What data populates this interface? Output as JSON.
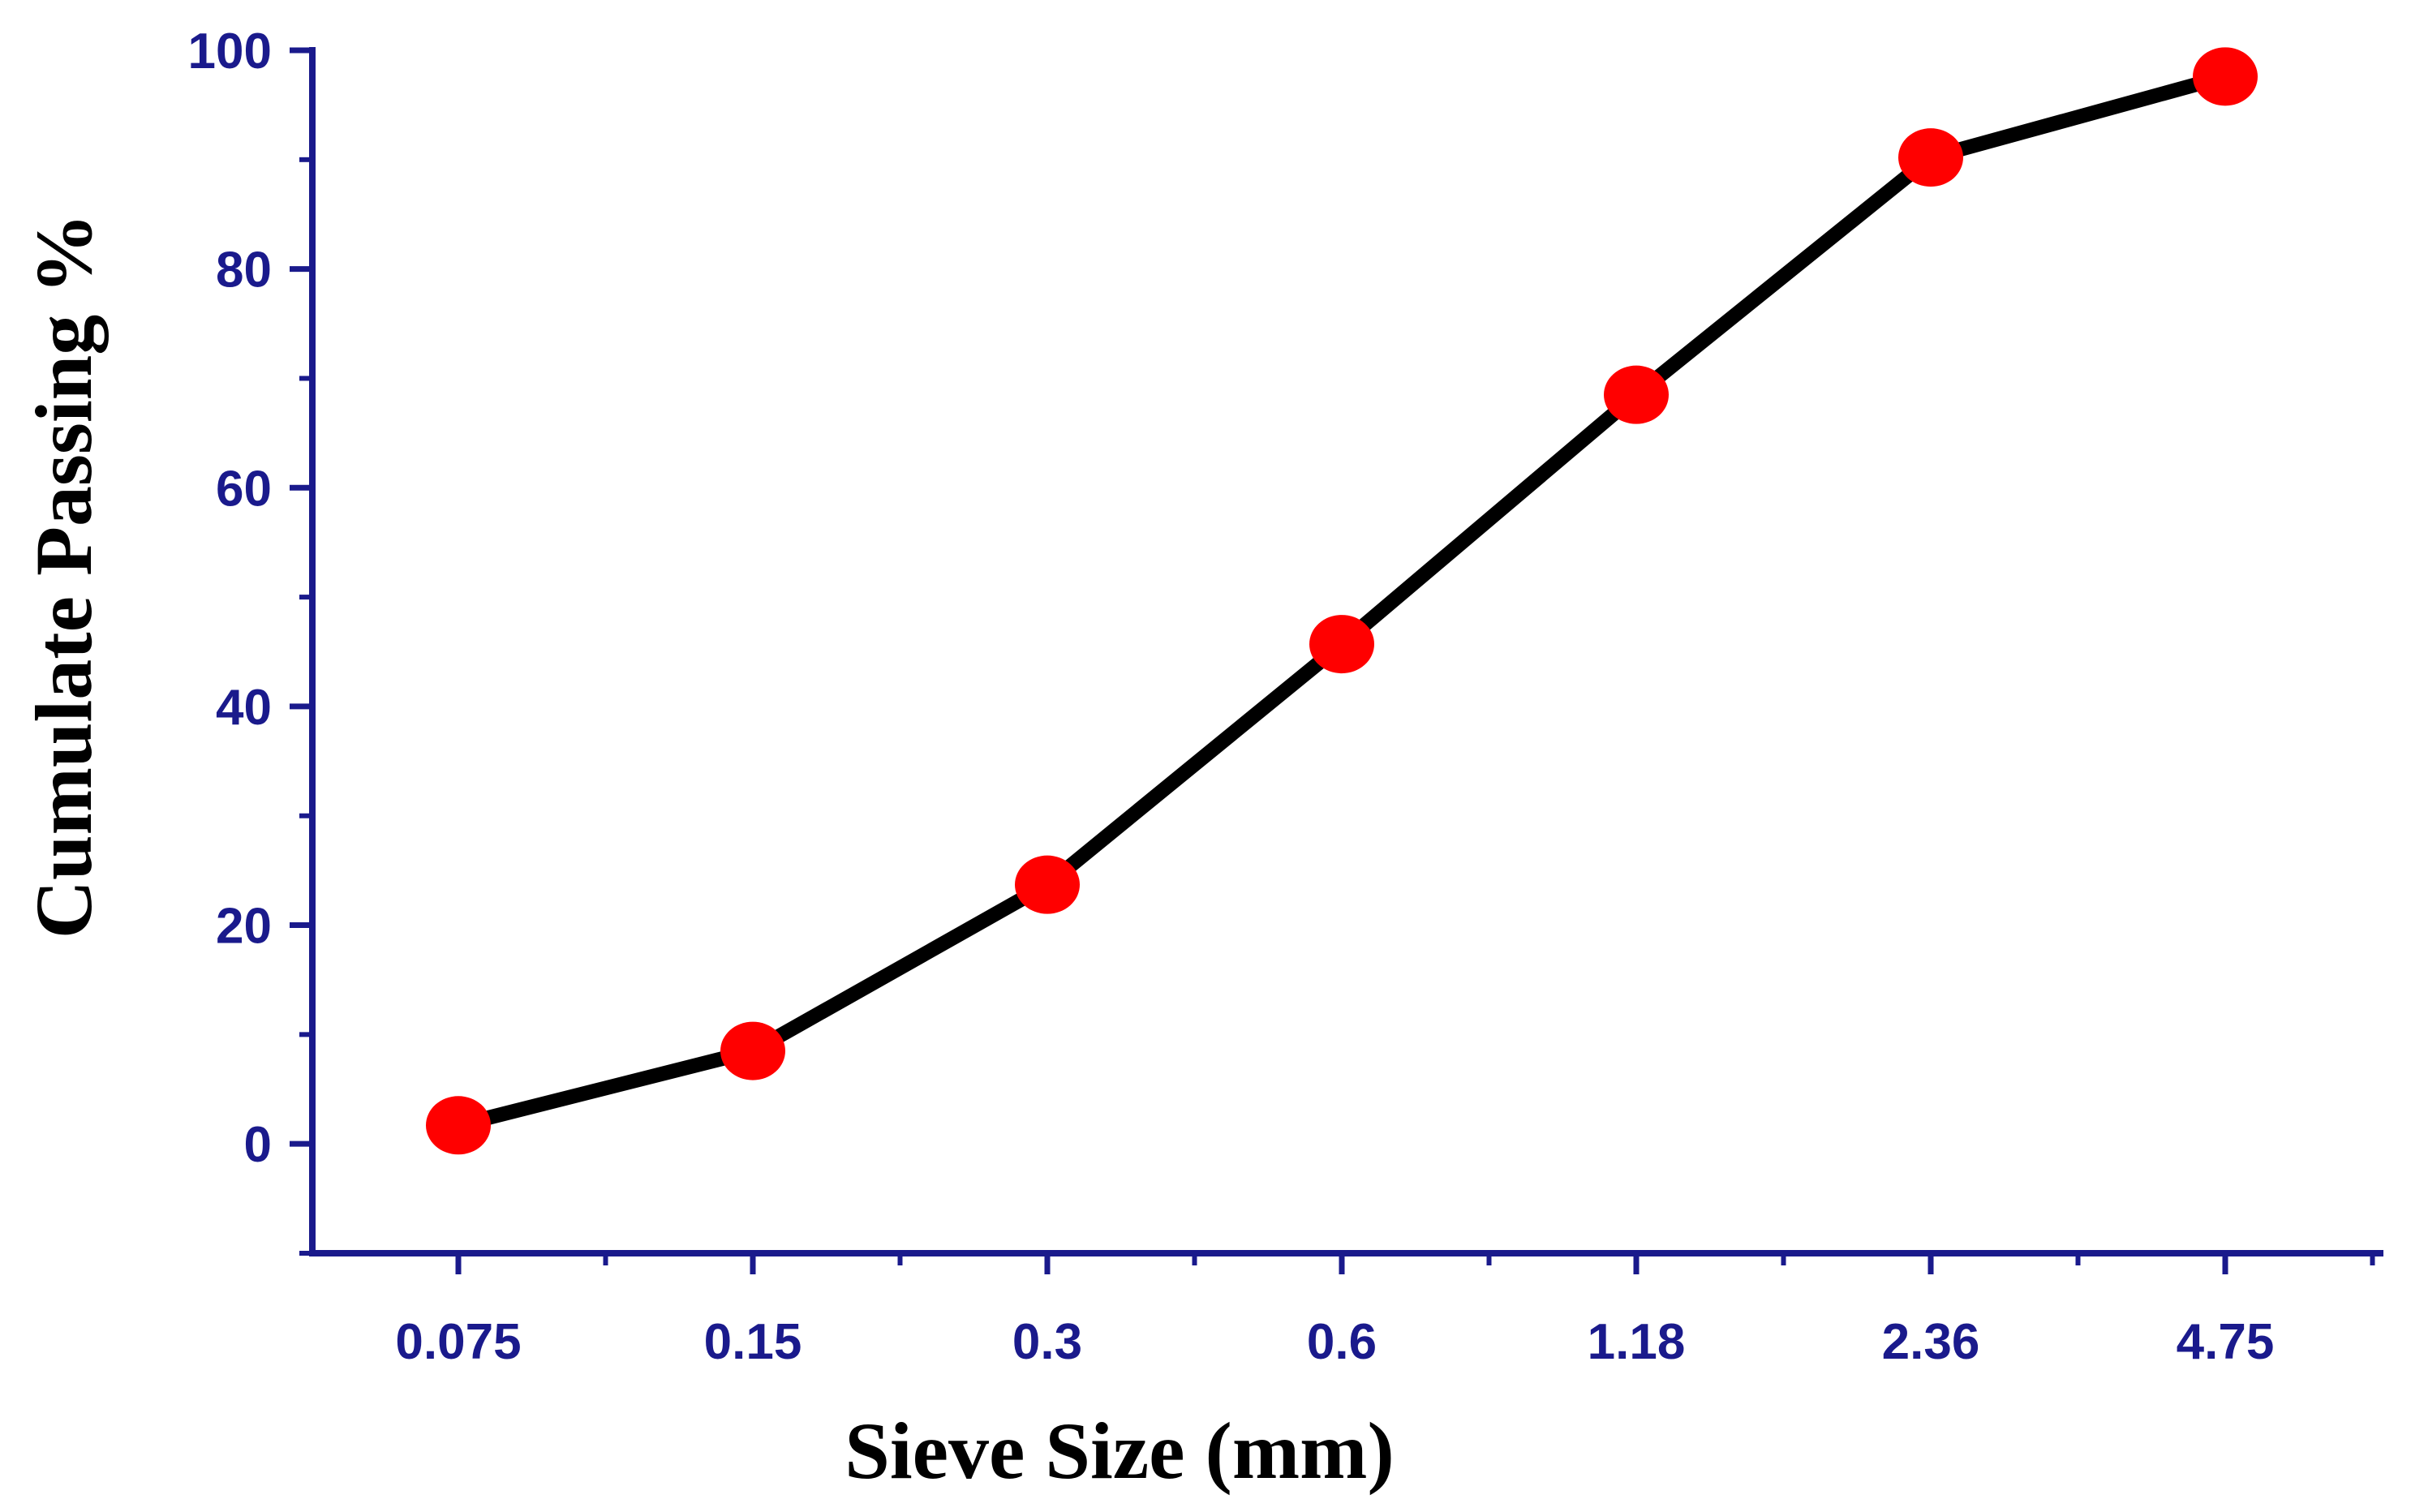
{
  "chart_data": {
    "type": "line",
    "title": "",
    "xlabel": "Sieve Size (mm)",
    "ylabel": "Cumulate Passing %",
    "categories": [
      "0.075",
      "0.15",
      "0.3",
      "0.6",
      "1.18",
      "2.36",
      "4.75"
    ],
    "series": [
      {
        "name": "Cumulate Passing",
        "values": [
          1.7,
          8.5,
          23.7,
          45.7,
          68.5,
          90.2,
          97.6
        ]
      }
    ],
    "ylim": [
      -10,
      100
    ],
    "yticks": [
      "0",
      "20",
      "40",
      "60",
      "80",
      "100"
    ],
    "grid": false,
    "legend": "none",
    "colors": {
      "axis": "#1a1a8c",
      "tick_labels": "#1a1a8c",
      "line": "#000000",
      "marker": "#ff0000"
    }
  }
}
